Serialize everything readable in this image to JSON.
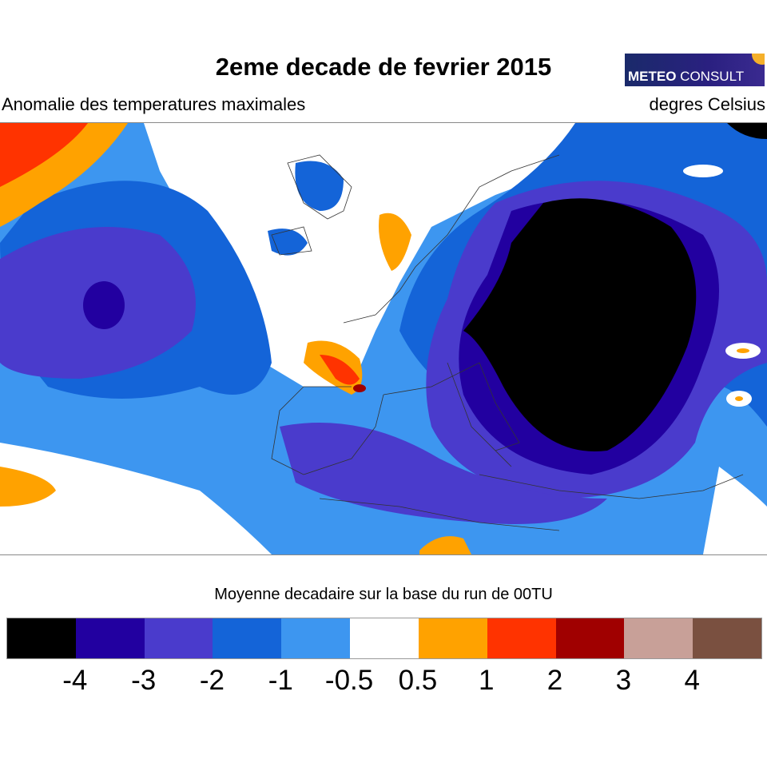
{
  "title": "2eme decade de fevrier 2015",
  "subtitle": "Anomalie des temperatures maximales",
  "units": "degres Celsius",
  "logo": {
    "bold": "METEO",
    "rest": " CONSULT"
  },
  "footnote": "Moyenne decadaire sur la base du run de 00TU",
  "legend": {
    "colors": [
      "#000000",
      "#2200a0",
      "#4a3bcc",
      "#1464d8",
      "#3d96f0",
      "#ffffff",
      "#ffa200",
      "#ff3300",
      "#a00000",
      "#c8a098",
      "#7a5040"
    ],
    "labels": [
      "-4",
      "-3",
      "-2",
      "-1",
      "-0.5",
      "0.5",
      "1",
      "2",
      "3",
      "4"
    ]
  }
}
